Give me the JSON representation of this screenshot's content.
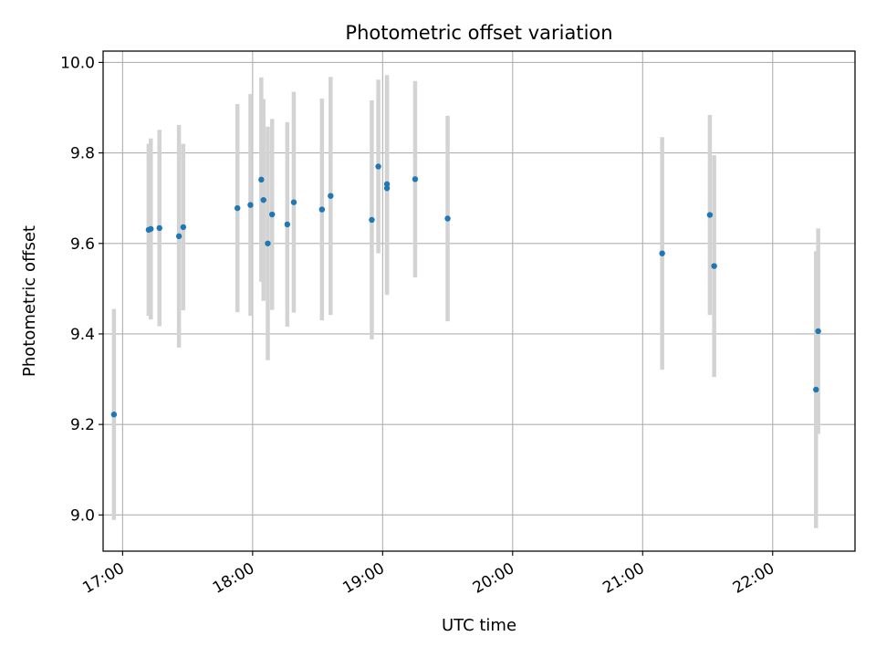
{
  "chart_data": {
    "type": "scatter",
    "title": "Photometric offset variation",
    "xlabel": "UTC time",
    "ylabel": "Photometric offset",
    "xlim": [
      "16:51",
      "22:38"
    ],
    "ylim": [
      8.92,
      10.025
    ],
    "x_ticks": [
      "17:00",
      "18:00",
      "19:00",
      "20:00",
      "21:00",
      "22:00"
    ],
    "y_ticks": [
      "9.0",
      "9.2",
      "9.4",
      "9.6",
      "9.8",
      "10.0"
    ],
    "grid": true,
    "point_color": "#1f77b4",
    "errorbar_color": "#d3d3d3",
    "points": [
      {
        "t": "16:56",
        "y": 9.222,
        "err": 0.233
      },
      {
        "t": "17:12",
        "y": 9.63,
        "err": 0.19
      },
      {
        "t": "17:13",
        "y": 9.632,
        "err": 0.2
      },
      {
        "t": "17:17",
        "y": 9.634,
        "err": 0.217
      },
      {
        "t": "17:26",
        "y": 9.616,
        "err": 0.246
      },
      {
        "t": "17:28",
        "y": 9.636,
        "err": 0.184
      },
      {
        "t": "17:53",
        "y": 9.678,
        "err": 0.23
      },
      {
        "t": "17:59",
        "y": 9.685,
        "err": 0.245
      },
      {
        "t": "18:04",
        "y": 9.741,
        "err": 0.226
      },
      {
        "t": "18:05",
        "y": 9.696,
        "err": 0.223
      },
      {
        "t": "18:07",
        "y": 9.6,
        "err": 0.258
      },
      {
        "t": "18:09",
        "y": 9.664,
        "err": 0.211
      },
      {
        "t": "18:16",
        "y": 9.642,
        "err": 0.226
      },
      {
        "t": "18:19",
        "y": 9.691,
        "err": 0.244
      },
      {
        "t": "18:32",
        "y": 9.675,
        "err": 0.245
      },
      {
        "t": "18:36",
        "y": 9.705,
        "err": 0.263
      },
      {
        "t": "18:55",
        "y": 9.652,
        "err": 0.264
      },
      {
        "t": "18:58",
        "y": 9.77,
        "err": 0.192
      },
      {
        "t": "19:02",
        "y": 9.722,
        "err": 0.236
      },
      {
        "t": "19:02",
        "y": 9.731,
        "err": 0.241
      },
      {
        "t": "19:15",
        "y": 9.742,
        "err": 0.217
      },
      {
        "t": "19:30",
        "y": 9.655,
        "err": 0.227
      },
      {
        "t": "21:09",
        "y": 9.578,
        "err": 0.257
      },
      {
        "t": "21:31",
        "y": 9.663,
        "err": 0.221
      },
      {
        "t": "21:33",
        "y": 9.55,
        "err": 0.245
      },
      {
        "t": "22:20",
        "y": 9.277,
        "err": 0.306
      },
      {
        "t": "22:21",
        "y": 9.406,
        "err": 0.227
      }
    ]
  }
}
